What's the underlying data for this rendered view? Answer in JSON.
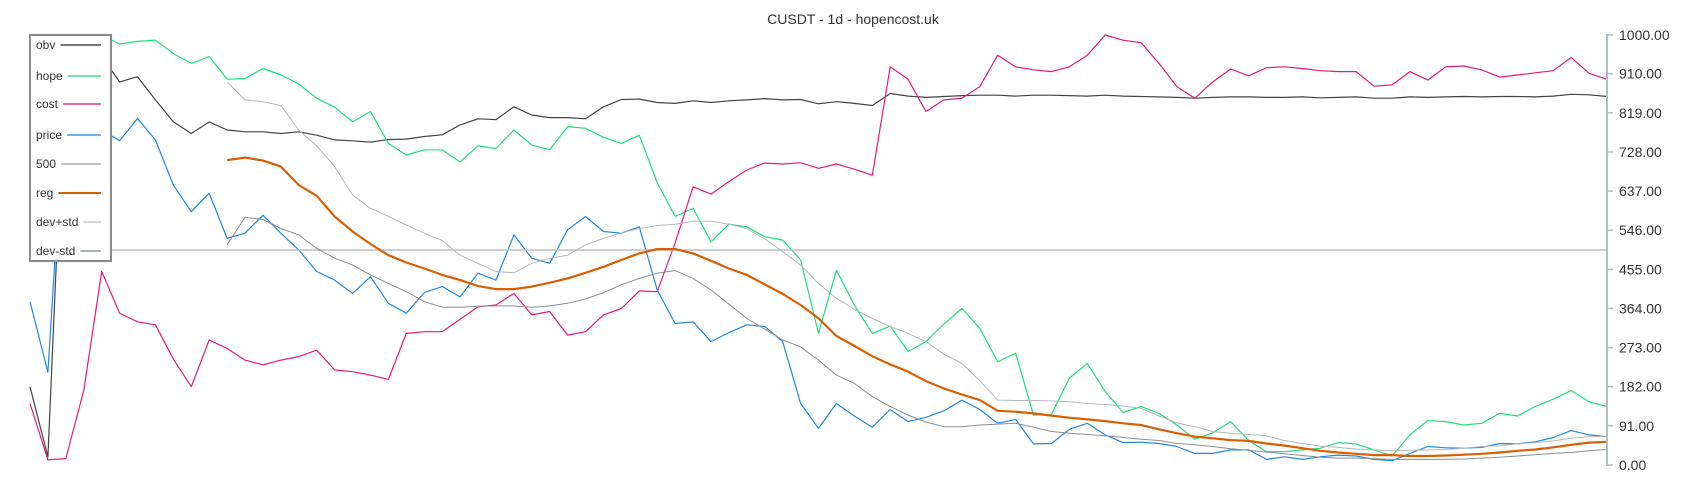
{
  "chart_data": {
    "type": "line",
    "title": "CUSDT - 1d - hopencost.uk",
    "xlabel": "",
    "ylabel": "",
    "ylim": [
      0,
      1000
    ],
    "y_ticks": [
      "1000.00",
      "910.00",
      "819.00",
      "728.00",
      "637.00",
      "546.00",
      "455.00",
      "364.00",
      "273.00",
      "182.00",
      "91.00",
      "0.00"
    ],
    "y_tick_values": [
      1000,
      910,
      819,
      728,
      637,
      546,
      455,
      364,
      273,
      182,
      91,
      0
    ],
    "y_axis_position": "right",
    "grid": false,
    "legend_position": "top-left",
    "points": 89,
    "series": [
      {
        "name": "obv",
        "color": "#444444",
        "legend_color": "#777777",
        "width": 1.2,
        "values": [
          182,
          19,
          980,
          960,
          950,
          891,
          903,
          849,
          798,
          771,
          798,
          779,
          775,
          775,
          771,
          775,
          767,
          756,
          754,
          751,
          757,
          758,
          764,
          768,
          791,
          805,
          803,
          833,
          814,
          808,
          808,
          805,
          833,
          850,
          851,
          843,
          841,
          847,
          843,
          847,
          849,
          852,
          849,
          850,
          840,
          845,
          841,
          836,
          864,
          858,
          855,
          857,
          859,
          860,
          860,
          858,
          860,
          860,
          859,
          858,
          860,
          858,
          857,
          856,
          855,
          853,
          855,
          856,
          856,
          855,
          855,
          856,
          854,
          855,
          856,
          853,
          853,
          856,
          855,
          856,
          857,
          856,
          857,
          857,
          856,
          858,
          862,
          861,
          857
        ]
      },
      {
        "name": "hope",
        "color": "#1ee07a",
        "legend_color": "#6ee8a4",
        "width": 1.2,
        "values": [
          970,
          980,
          990,
          995,
          1000,
          979,
          985,
          988,
          957,
          934,
          950,
          897,
          899,
          922,
          907,
          886,
          853,
          832,
          798,
          822,
          748,
          721,
          733,
          733,
          705,
          742,
          736,
          779,
          744,
          733,
          787,
          783,
          762,
          748,
          767,
          657,
          578,
          597,
          519,
          560,
          554,
          531,
          523,
          477,
          306,
          453,
          372,
          306,
          323,
          264,
          287,
          328,
          364,
          318,
          240,
          260,
          116,
          118,
          202,
          236,
          171,
          122,
          136,
          120,
          93,
          60,
          75,
          101,
          57,
          31,
          31,
          35,
          39,
          52,
          49,
          35,
          21,
          70,
          103,
          101,
          93,
          97,
          120,
          114,
          136,
          153,
          173,
          147,
          136
        ]
      },
      {
        "name": "cost",
        "color": "#e6197a",
        "legend_color": "#e86aa6",
        "width": 1.2,
        "values": [
          143,
          12,
          15,
          174,
          450,
          353,
          333,
          326,
          246,
          182,
          291,
          271,
          244,
          233,
          244,
          252,
          267,
          221,
          217,
          209,
          199,
          306,
          310,
          310,
          339,
          368,
          372,
          399,
          349,
          357,
          302,
          310,
          349,
          364,
          405,
          403,
          516,
          647,
          630,
          659,
          686,
          702,
          700,
          703,
          690,
          700,
          688,
          674,
          926,
          897,
          822,
          849,
          853,
          880,
          953,
          926,
          919,
          915,
          926,
          953,
          1000,
          988,
          982,
          934,
          880,
          853,
          891,
          921,
          905,
          924,
          926,
          922,
          917,
          915,
          915,
          881,
          884,
          915,
          895,
          926,
          928,
          919,
          902,
          907,
          912,
          917,
          948,
          911,
          897
        ]
      },
      {
        "name": "price",
        "color": "#1e88e5",
        "legend_color": "#6cb2ee",
        "width": 1.2,
        "values": [
          380,
          216,
          880,
          820,
          780,
          754,
          806,
          756,
          651,
          589,
          632,
          527,
          539,
          581,
          539,
          500,
          450,
          430,
          399,
          438,
          376,
          353,
          401,
          415,
          391,
          446,
          430,
          535,
          481,
          469,
          547,
          578,
          543,
          539,
          554,
          407,
          329,
          333,
          287,
          308,
          326,
          322,
          287,
          143,
          85,
          143,
          114,
          88,
          129,
          101,
          111,
          126,
          151,
          129,
          97,
          106,
          49,
          50,
          83,
          97,
          70,
          52,
          53,
          50,
          43,
          27,
          27,
          35,
          35,
          13,
          19,
          13,
          19,
          23,
          21,
          13,
          10,
          27,
          43,
          40,
          39,
          41,
          50,
          49,
          54,
          64,
          80,
          70,
          66
        ]
      },
      {
        "name": "500",
        "color": "#bdbdbd",
        "legend_color": "#c4c4c4",
        "width": 1.5,
        "values": [
          500,
          500,
          500,
          500,
          500,
          500,
          500,
          500,
          500,
          500,
          500,
          500,
          500,
          500,
          500,
          500,
          500,
          500,
          500,
          500,
          500,
          500,
          500,
          500,
          500,
          500,
          500,
          500,
          500,
          500,
          500,
          500,
          500,
          500,
          500,
          500,
          500,
          500,
          500,
          500,
          500,
          500,
          500,
          500,
          500,
          500,
          500,
          500,
          500,
          500,
          500,
          500,
          500,
          500,
          500,
          500,
          500,
          500,
          500,
          500,
          500,
          500,
          500,
          500,
          500,
          500,
          500,
          500,
          500,
          500,
          500,
          500,
          500,
          500,
          500,
          500,
          500,
          500,
          500,
          500,
          500,
          500,
          500,
          500,
          500,
          500,
          500,
          500,
          500
        ]
      },
      {
        "name": "reg",
        "color": "#d95f02",
        "legend_color": "#d35f0a",
        "width": 2.2,
        "values": [
          null,
          null,
          null,
          null,
          null,
          null,
          null,
          null,
          null,
          null,
          null,
          709,
          715,
          708,
          694,
          651,
          626,
          578,
          543,
          514,
          488,
          471,
          457,
          442,
          430,
          416,
          409,
          409,
          415,
          424,
          434,
          447,
          461,
          477,
          492,
          502,
          502,
          492,
          475,
          457,
          442,
          420,
          398,
          372,
          341,
          300,
          277,
          253,
          234,
          217,
          195,
          178,
          164,
          151,
          126,
          124,
          120,
          115,
          110,
          106,
          102,
          97,
          93,
          83,
          74,
          66,
          62,
          58,
          56,
          50,
          45,
          39,
          33,
          29,
          26,
          23,
          23,
          21,
          21,
          22,
          24,
          26,
          29,
          33,
          36,
          41,
          47,
          52,
          54
        ]
      },
      {
        "name": "dev+std",
        "color": "#b4b8bb",
        "legend_color": "#d3d7da",
        "width": 1,
        "values": [
          null,
          null,
          null,
          null,
          null,
          null,
          null,
          null,
          null,
          null,
          null,
          891,
          849,
          845,
          836,
          779,
          742,
          694,
          628,
          597,
          578,
          558,
          539,
          522,
          488,
          469,
          450,
          447,
          469,
          481,
          488,
          512,
          527,
          540,
          550,
          557,
          560,
          567,
          567,
          560,
          550,
          526,
          496,
          465,
          422,
          388,
          362,
          341,
          322,
          306,
          287,
          258,
          236,
          196,
          151,
          150,
          150,
          149,
          147,
          143,
          141,
          137,
          132,
          114,
          98,
          89,
          78,
          74,
          71,
          68,
          57,
          50,
          44,
          41,
          37,
          35,
          33,
          34,
          35,
          36,
          39,
          43,
          45,
          49,
          52,
          56,
          62,
          66,
          67
        ]
      },
      {
        "name": "dev-std",
        "color": "#8a8f93",
        "legend_color": "#a9b4b9",
        "width": 1,
        "values": [
          null,
          null,
          null,
          null,
          null,
          null,
          null,
          null,
          null,
          null,
          null,
          512,
          576,
          571,
          550,
          535,
          504,
          481,
          465,
          442,
          422,
          403,
          380,
          367,
          367,
          369,
          370,
          370,
          367,
          370,
          376,
          386,
          401,
          419,
          434,
          446,
          452,
          434,
          407,
          374,
          341,
          316,
          291,
          275,
          244,
          209,
          190,
          159,
          136,
          116,
          100,
          89,
          89,
          93,
          95,
          97,
          88,
          78,
          74,
          71,
          68,
          64,
          60,
          57,
          50,
          47,
          43,
          38,
          34,
          30,
          26,
          22,
          18,
          16,
          16,
          15,
          13,
          13,
          13,
          13,
          14,
          16,
          18,
          21,
          24,
          27,
          29,
          33,
          36
        ]
      }
    ]
  }
}
